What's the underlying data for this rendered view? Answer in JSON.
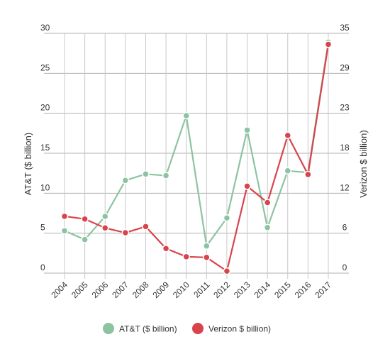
{
  "chart_data": {
    "type": "line",
    "title": "",
    "xlabel": "",
    "ylabel_left": "AT&T ($ billion)",
    "ylabel_right": "Verizon $ billion)",
    "categories": [
      "2004",
      "2005",
      "2006",
      "2007",
      "2008",
      "2009",
      "2010",
      "2011",
      "2012",
      "2013",
      "2014",
      "2015",
      "2016",
      "2017"
    ],
    "left_axis": {
      "ylim": [
        0,
        30
      ],
      "ticks": [
        "0",
        "5",
        "10",
        "15",
        "20",
        "25",
        "30"
      ]
    },
    "right_axis": {
      "ylim": [
        0,
        35
      ],
      "ticks": [
        "0",
        "6",
        "12",
        "18",
        "23",
        "29",
        "35"
      ]
    },
    "grid": true,
    "legend_position": "bottom",
    "series": [
      {
        "name": "AT&T ($ billion)",
        "axis": "left",
        "color": "#8cc4a1",
        "values": [
          5.3,
          4.2,
          7.1,
          11.6,
          12.4,
          12.2,
          19.7,
          3.4,
          6.9,
          17.9,
          5.7,
          12.8,
          12.6,
          28.9
        ]
      },
      {
        "name": "Verizon $ billion)",
        "axis": "right",
        "color": "#d9434c",
        "values": [
          8.3,
          7.9,
          6.6,
          5.9,
          6.8,
          3.6,
          2.4,
          2.3,
          0.3,
          12.7,
          10.3,
          20.1,
          14.4,
          33.4
        ]
      }
    ]
  }
}
